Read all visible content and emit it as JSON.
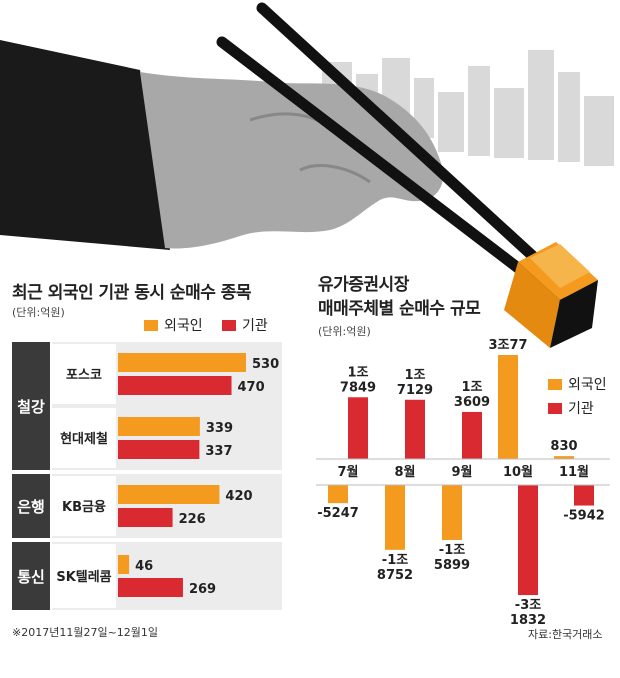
{
  "left": {
    "title": "최근 외국인 기관 동시 순매수 종목",
    "unit": "(단위:억원)",
    "legend": [
      {
        "label": "외국인",
        "color": "#f39a1f"
      },
      {
        "label": "기관",
        "color": "#d92a32"
      }
    ],
    "note": "※2017년11월27일~12월1일"
  },
  "right": {
    "title_line1": "유가증권시장",
    "title_line2": "매매주체별 순매수 규모",
    "unit": "(단위:억원)",
    "legend": [
      {
        "label": "외국인",
        "color": "#f39a1f"
      },
      {
        "label": "기관",
        "color": "#d92a32"
      }
    ],
    "source": "자료:한국거래소"
  },
  "chart_data": [
    {
      "type": "bar",
      "orientation": "horizontal",
      "title": "최근 외국인 기관 동시 순매수 종목",
      "unit": "억원",
      "groups": [
        {
          "sector": "철강",
          "items": [
            {
              "name": "포스코",
              "foreign": 530,
              "institution": 470
            },
            {
              "name": "현대제철",
              "foreign": 339,
              "institution": 337
            }
          ]
        },
        {
          "sector": "은행",
          "items": [
            {
              "name": "KB금융",
              "foreign": 420,
              "institution": 226
            }
          ]
        },
        {
          "sector": "통신",
          "items": [
            {
              "name": "SK텔레콤",
              "foreign": 46,
              "institution": 269
            }
          ]
        }
      ],
      "series": [
        {
          "name": "외국인",
          "color": "#f39a1f"
        },
        {
          "name": "기관",
          "color": "#d92a32"
        }
      ]
    },
    {
      "type": "bar",
      "title": "유가증권시장 매매주체별 순매수 규모",
      "unit": "억원",
      "categories": [
        "7월",
        "8월",
        "9월",
        "10월",
        "11월"
      ],
      "series": [
        {
          "name": "외국인",
          "color": "#f39a1f",
          "values": [
            -5247,
            -18752,
            -15899,
            30077,
            830
          ],
          "labels": [
            [
              "-5247"
            ],
            [
              "-1조",
              "8752"
            ],
            [
              "-1조",
              "5899"
            ],
            [
              "3조77"
            ],
            [
              "830"
            ]
          ]
        },
        {
          "name": "기관",
          "color": "#d92a32",
          "values": [
            17849,
            17129,
            13609,
            -31832,
            -5942
          ],
          "labels": [
            [
              "1조",
              "7849"
            ],
            [
              "1조",
              "7129"
            ],
            [
              "1조",
              "3609"
            ],
            [
              "-3조",
              "1832"
            ],
            [
              "-5942"
            ]
          ]
        }
      ]
    }
  ]
}
